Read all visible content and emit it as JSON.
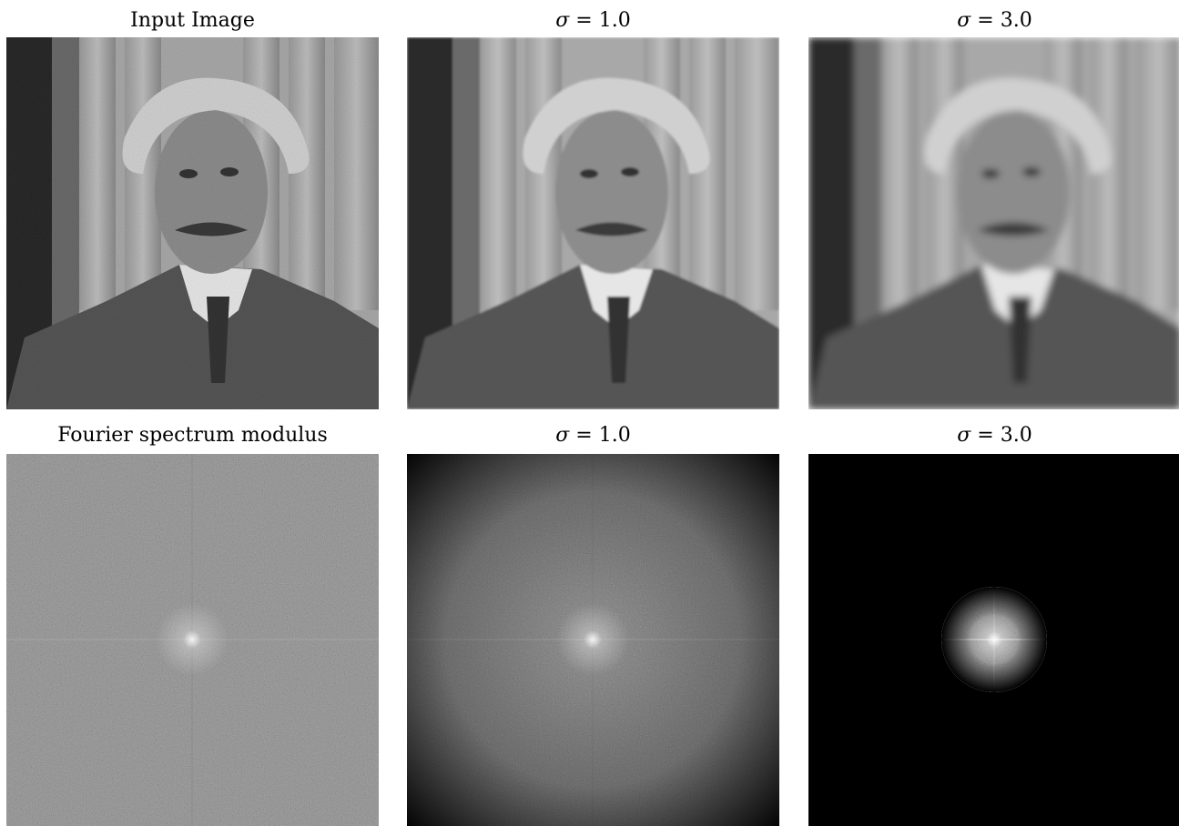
{
  "figure": {
    "rows": [
      {
        "panels": [
          {
            "title": "Input Image",
            "sigma": "",
            "kind": "portrait",
            "blur": 0
          },
          {
            "title": "",
            "sigma": "1.0",
            "kind": "portrait",
            "blur": 1.0
          },
          {
            "title": "",
            "sigma": "3.0",
            "kind": "portrait",
            "blur": 3.0
          }
        ]
      },
      {
        "panels": [
          {
            "title": "Fourier spectrum modulus",
            "sigma": "",
            "kind": "spectrum-flat"
          },
          {
            "title": "",
            "sigma": "1.0",
            "kind": "spectrum-vignette"
          },
          {
            "title": "",
            "sigma": "3.0",
            "kind": "spectrum-disk"
          }
        ]
      }
    ],
    "sigma_symbol": "σ",
    "equals": "="
  }
}
